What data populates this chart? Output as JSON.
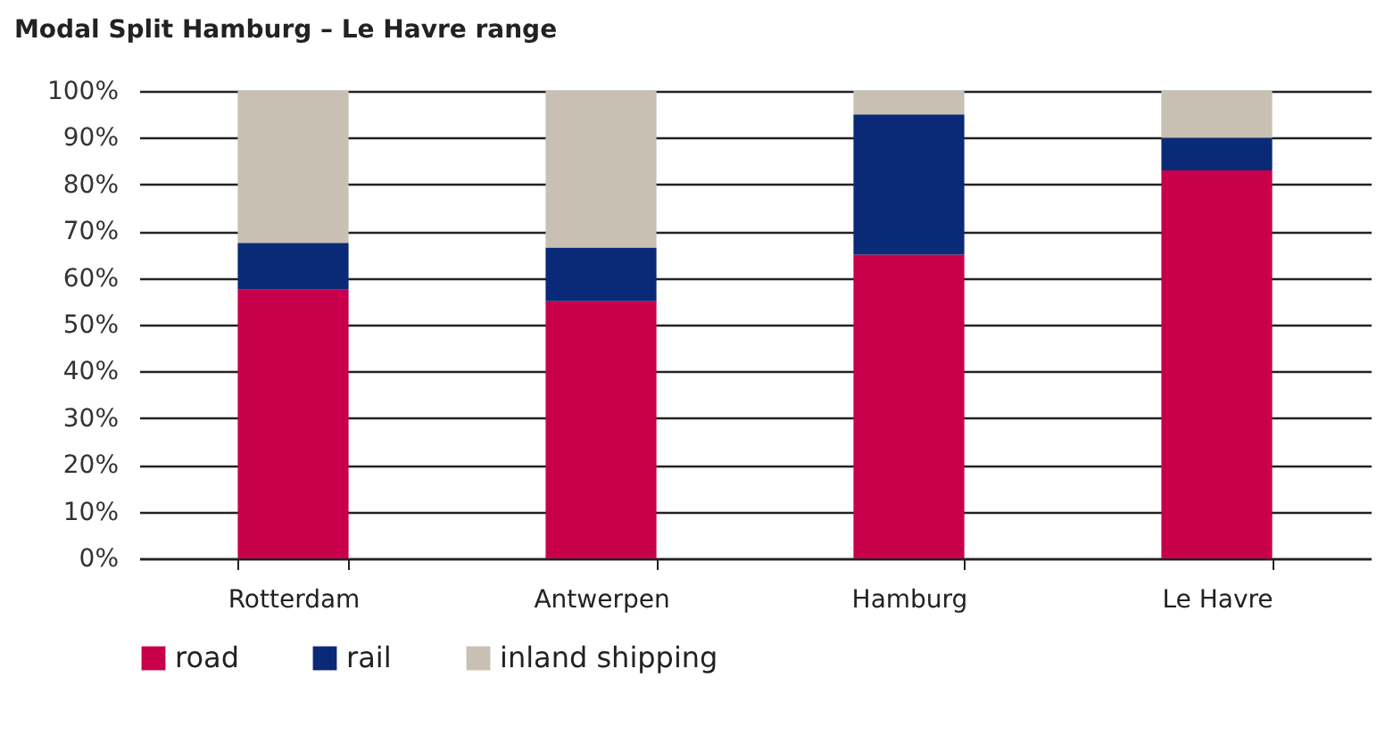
{
  "chart_data": {
    "type": "bar",
    "title": "Modal Split Hamburg – Le Havre range",
    "categories": [
      "Rotterdam",
      "Antwerpen",
      "Hamburg",
      "Le Havre"
    ],
    "stacked": true,
    "series": [
      {
        "name": "road",
        "color": "#c8004b",
        "values": [
          57.5,
          55,
          65,
          83
        ]
      },
      {
        "name": "rail",
        "color": "#0a2a78",
        "values": [
          10,
          11.5,
          30,
          7
        ]
      },
      {
        "name": "inland shipping",
        "color": "#c9c0b4",
        "values": [
          32.5,
          33.5,
          5,
          10
        ]
      }
    ],
    "ylim": [
      0,
      100
    ],
    "yticks": [
      {
        "value": 0,
        "label": "0%"
      },
      {
        "value": 10,
        "label": "10%"
      },
      {
        "value": 20,
        "label": "20%"
      },
      {
        "value": 30,
        "label": "30%"
      },
      {
        "value": 40,
        "label": "40%"
      },
      {
        "value": 50,
        "label": "50%"
      },
      {
        "value": 60,
        "label": "60%"
      },
      {
        "value": 70,
        "label": "70%"
      },
      {
        "value": 80,
        "label": "80%"
      },
      {
        "value": 90,
        "label": "90%"
      },
      {
        "value": 100,
        "label": "100%"
      }
    ],
    "grid": "y",
    "legend": "bottom"
  }
}
